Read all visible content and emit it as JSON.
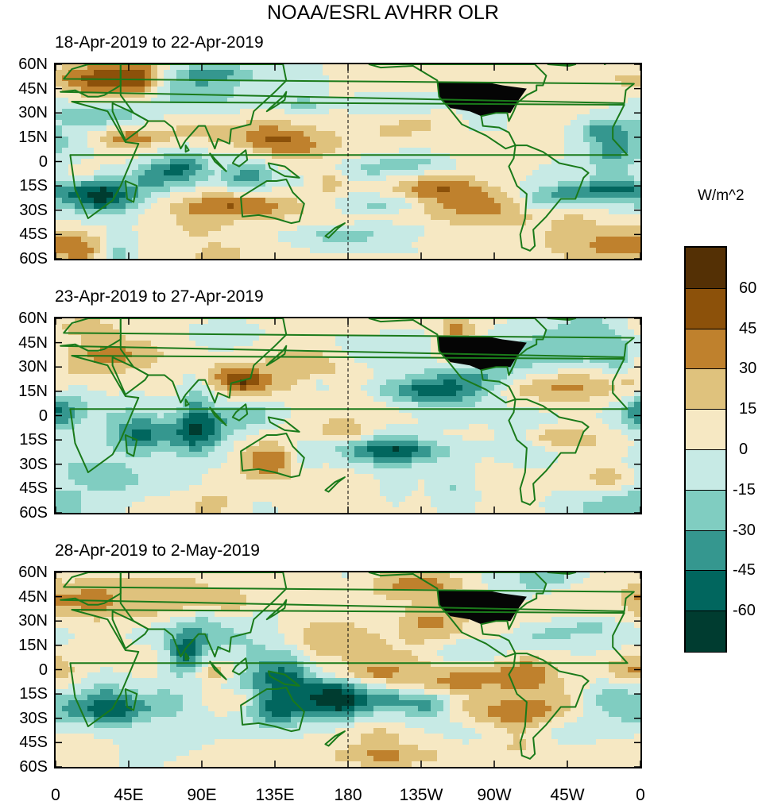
{
  "chart_data": {
    "type": "heatmap",
    "title": "NOAA/ESRL AVHRR OLR",
    "units": "W/m^2",
    "xlabel": "",
    "ylabel": "",
    "x_ticks": [
      "0",
      "45E",
      "90E",
      "135E",
      "180",
      "135W",
      "90W",
      "45W",
      "0"
    ],
    "y_ticks": [
      "60N",
      "45N",
      "30N",
      "15N",
      "0",
      "15S",
      "30S",
      "45S",
      "60S"
    ],
    "xlim": [
      0,
      360
    ],
    "ylim": [
      -60,
      60
    ],
    "colorbar": {
      "labels": [
        "60",
        "45",
        "30",
        "15",
        "0",
        "-15",
        "-30",
        "-45",
        "-60"
      ],
      "colors": [
        "#543005",
        "#8c510a",
        "#bf812d",
        "#dfc27d",
        "#f6e8c3",
        "#c7eae5",
        "#80cdc1",
        "#35978f",
        "#01665e",
        "#003c30"
      ]
    },
    "panels": [
      {
        "title": "18-Apr-2019 to 22-Apr-2019"
      },
      {
        "title": "23-Apr-2019 to 27-Apr-2019"
      },
      {
        "title": "28-Apr-2019 to 2-May-2019"
      }
    ]
  }
}
